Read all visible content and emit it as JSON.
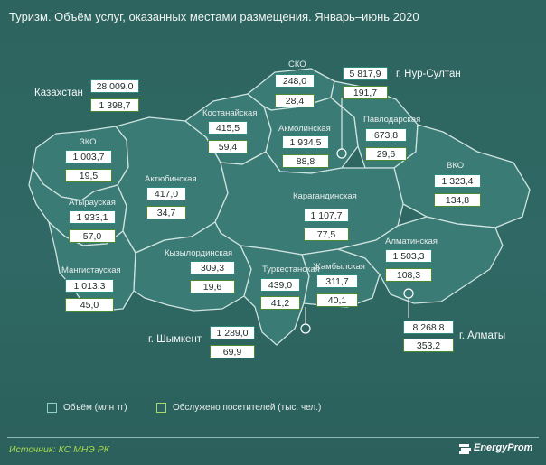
{
  "title": "Туризм. Объём услуг, оказанных местами размещения. Январь–июнь 2020",
  "national": {
    "label": "Казахстан",
    "volume": "28 009,0",
    "visitors": "1 398,7"
  },
  "regions": [
    {
      "id": "sko",
      "name": "СКО",
      "volume": "248,0",
      "visitors": "28,4"
    },
    {
      "id": "nur-sultan",
      "name": "г. Нур-Султан",
      "volume": "5 817,9",
      "visitors": "191,7"
    },
    {
      "id": "kostanay",
      "name": "Костанайская",
      "volume": "415,5",
      "visitors": "59,4"
    },
    {
      "id": "akmola",
      "name": "Акмолинская",
      "volume": "1 934,5",
      "visitors": "88,8"
    },
    {
      "id": "pavlodar",
      "name": "Павлодарская",
      "volume": "673,8",
      "visitors": "29,6"
    },
    {
      "id": "zko",
      "name": "ЗКО",
      "volume": "1 003,7",
      "visitors": "19,5"
    },
    {
      "id": "aktobe",
      "name": "Актюбинская",
      "volume": "417,0",
      "visitors": "34,7"
    },
    {
      "id": "vko",
      "name": "ВКО",
      "volume": "1 323,4",
      "visitors": "134,8"
    },
    {
      "id": "atyrau",
      "name": "Атырауская",
      "volume": "1 933,1",
      "visitors": "57,0"
    },
    {
      "id": "karaganda",
      "name": "Карагандинская",
      "volume": "1 107,7",
      "visitors": "77,5"
    },
    {
      "id": "almaty-region",
      "name": "Алматинская",
      "volume": "1 503,3",
      "visitors": "108,3"
    },
    {
      "id": "mangystau",
      "name": "Мангистауская",
      "volume": "1 013,3",
      "visitors": "45,0"
    },
    {
      "id": "kyzylorda",
      "name": "Кызылординская",
      "volume": "309,3",
      "visitors": "19,6"
    },
    {
      "id": "turkestan",
      "name": "Туркестанская",
      "volume": "439,0",
      "visitors": "41,2"
    },
    {
      "id": "zhambyl",
      "name": "Жамбылская",
      "volume": "311,7",
      "visitors": "40,1"
    },
    {
      "id": "shymkent",
      "name": "г. Шымкент",
      "volume": "1 289,0",
      "visitors": "69,9"
    },
    {
      "id": "almaty-city",
      "name": "г. Алматы",
      "volume": "8 268,8",
      "visitors": "353,2"
    }
  ],
  "legend": {
    "volume": "Объём (млн тг)",
    "visitors": "Обслужено посетителей (тыс. чел.)"
  },
  "source": "Источник: КС МНЭ РК",
  "brand": "EnergyProm",
  "colors": {
    "background": "#2f6662",
    "map_fill": "#3b7b76",
    "map_border": "#cfe3df",
    "volume_border": "#2f8a7e",
    "visitors_border": "#4a8a30",
    "source_text": "#a6d84f"
  }
}
